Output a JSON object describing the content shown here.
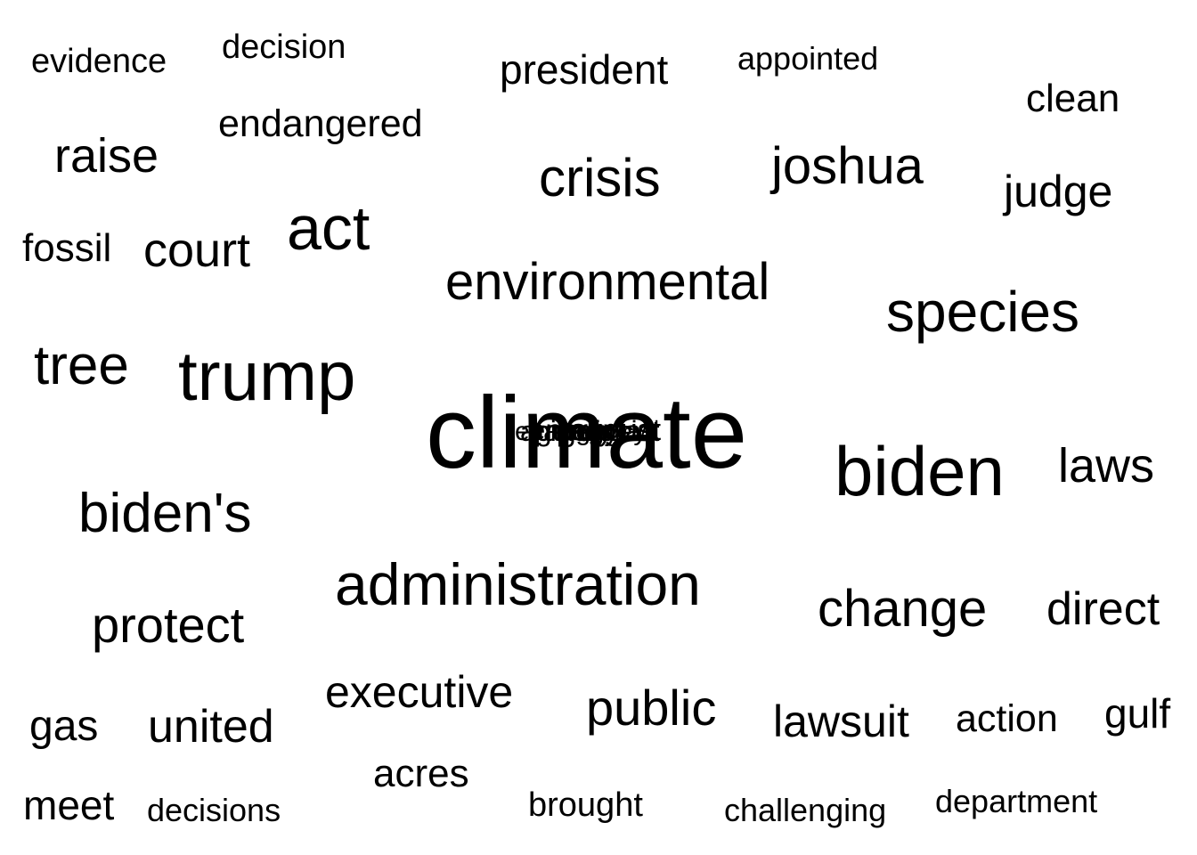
{
  "words": {
    "climate": "climate",
    "trump": "trump",
    "biden": "biden",
    "administration": "administration",
    "bidens": "biden's",
    "species": "species",
    "act": "act",
    "environmental": "environmental",
    "crisis": "crisis",
    "joshua": "joshua",
    "change": "change",
    "tree": "tree",
    "protect": "protect",
    "public": "public",
    "executive": "executive",
    "court": "court",
    "raise": "raise",
    "judge": "judge",
    "laws": "laws",
    "direct": "direct",
    "united": "united",
    "lawsuit": "lawsuit",
    "president": "president",
    "endangered": "endangered",
    "clean": "clean",
    "fossil": "fossil",
    "gas": "gas",
    "gulf": "gulf",
    "meet": "meet",
    "action": "action",
    "acres": "acres",
    "evidence": "evidence",
    "decision": "decision",
    "appointed": "appointed",
    "brought": "brought",
    "decisions": "decisions",
    "challenging": "challenging",
    "department": "department"
  },
  "overlap_cluster": [
    "agency",
    "energy",
    "emergency",
    "agenda",
    "august",
    "pipeline",
    "district"
  ]
}
